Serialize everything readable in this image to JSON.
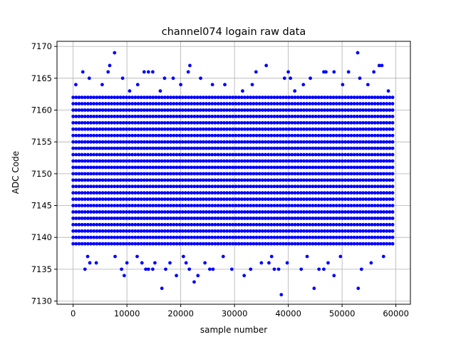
{
  "chart_data": {
    "type": "scatter",
    "title": "channel074 logain raw data",
    "xlabel": "sample number",
    "ylabel": "ADC Code",
    "xlim": [
      -3000,
      62700
    ],
    "ylim": [
      7129.5,
      7170.8
    ],
    "xticks": [
      0,
      10000,
      20000,
      30000,
      40000,
      50000,
      60000
    ],
    "yticks": [
      7130,
      7135,
      7140,
      7145,
      7150,
      7155,
      7160,
      7165,
      7170
    ],
    "grid": true,
    "legend": "none",
    "color": "#0000ff",
    "x_range": [
      0,
      59500
    ],
    "series": [
      {
        "dense_bands": [
          {
            "y": 7139,
            "x_span": [
              0,
              59500
            ]
          },
          {
            "y": 7140,
            "x_span": [
              0,
              59500
            ]
          },
          {
            "y": 7141,
            "x_span": [
              0,
              59500
            ]
          },
          {
            "y": 7142,
            "x_span": [
              0,
              59500
            ]
          },
          {
            "y": 7143,
            "x_span": [
              0,
              59500
            ]
          },
          {
            "y": 7144,
            "x_span": [
              0,
              59500
            ]
          },
          {
            "y": 7145,
            "x_span": [
              0,
              59500
            ]
          },
          {
            "y": 7146,
            "x_span": [
              0,
              59500
            ]
          },
          {
            "y": 7147,
            "x_span": [
              0,
              59500
            ]
          },
          {
            "y": 7148,
            "x_span": [
              0,
              59500
            ]
          },
          {
            "y": 7149,
            "x_span": [
              0,
              59500
            ]
          },
          {
            "y": 7150,
            "x_span": [
              0,
              59500
            ]
          },
          {
            "y": 7151,
            "x_span": [
              0,
              59500
            ]
          },
          {
            "y": 7152,
            "x_span": [
              0,
              59500
            ]
          },
          {
            "y": 7153,
            "x_span": [
              0,
              59500
            ]
          },
          {
            "y": 7154,
            "x_span": [
              0,
              59500
            ]
          },
          {
            "y": 7155,
            "x_span": [
              0,
              59500
            ]
          },
          {
            "y": 7156,
            "x_span": [
              0,
              59500
            ]
          },
          {
            "y": 7157,
            "x_span": [
              0,
              59500
            ]
          },
          {
            "y": 7158,
            "x_span": [
              0,
              59500
            ]
          },
          {
            "y": 7159,
            "x_span": [
              0,
              59500
            ]
          },
          {
            "y": 7160,
            "x_span": [
              0,
              59500
            ]
          },
          {
            "y": 7161,
            "x_span": [
              0,
              59500
            ]
          },
          {
            "y": 7162,
            "x_span": [
              0,
              59500
            ]
          }
        ],
        "sparse_points": [
          [
            2200,
            7135
          ],
          [
            3100,
            7136
          ],
          [
            4300,
            7136
          ],
          [
            9000,
            7135
          ],
          [
            9500,
            7134
          ],
          [
            10000,
            7136
          ],
          [
            12800,
            7136
          ],
          [
            13500,
            7135
          ],
          [
            14000,
            7135
          ],
          [
            14800,
            7135
          ],
          [
            15200,
            7136
          ],
          [
            16500,
            7132
          ],
          [
            17200,
            7135
          ],
          [
            18000,
            7136
          ],
          [
            19200,
            7134
          ],
          [
            21000,
            7136
          ],
          [
            21600,
            7135
          ],
          [
            22500,
            7133
          ],
          [
            23200,
            7134
          ],
          [
            24500,
            7136
          ],
          [
            25400,
            7135
          ],
          [
            26000,
            7135
          ],
          [
            29500,
            7135
          ],
          [
            31800,
            7134
          ],
          [
            33000,
            7135
          ],
          [
            35000,
            7136
          ],
          [
            36400,
            7136
          ],
          [
            37400,
            7135
          ],
          [
            38200,
            7135
          ],
          [
            38700,
            7131
          ],
          [
            39800,
            7136
          ],
          [
            42400,
            7135
          ],
          [
            44800,
            7132
          ],
          [
            45700,
            7135
          ],
          [
            46600,
            7135
          ],
          [
            47400,
            7136
          ],
          [
            48500,
            7134
          ],
          [
            53000,
            7132
          ],
          [
            53600,
            7135
          ],
          [
            55400,
            7136
          ],
          [
            1800,
            7166
          ],
          [
            3000,
            7165
          ],
          [
            6500,
            7166
          ],
          [
            6800,
            7167
          ],
          [
            7700,
            7169
          ],
          [
            9200,
            7165
          ],
          [
            13200,
            7166
          ],
          [
            14000,
            7166
          ],
          [
            14800,
            7166
          ],
          [
            17000,
            7165
          ],
          [
            18600,
            7165
          ],
          [
            21400,
            7166
          ],
          [
            21700,
            7167
          ],
          [
            23700,
            7165
          ],
          [
            34000,
            7166
          ],
          [
            35900,
            7167
          ],
          [
            39300,
            7165
          ],
          [
            40000,
            7166
          ],
          [
            40400,
            7165
          ],
          [
            42800,
            7164
          ],
          [
            44100,
            7165
          ],
          [
            46600,
            7166
          ],
          [
            47000,
            7166
          ],
          [
            48500,
            7166
          ],
          [
            51200,
            7166
          ],
          [
            52900,
            7169
          ],
          [
            53300,
            7165
          ],
          [
            55900,
            7166
          ],
          [
            56900,
            7167
          ],
          [
            57400,
            7167
          ],
          [
            500,
            7164
          ],
          [
            5400,
            7164
          ],
          [
            10500,
            7163
          ],
          [
            12000,
            7164
          ],
          [
            16200,
            7163
          ],
          [
            20000,
            7164
          ],
          [
            25900,
            7164
          ],
          [
            28200,
            7164
          ],
          [
            31500,
            7163
          ],
          [
            33300,
            7164
          ],
          [
            41200,
            7163
          ],
          [
            50100,
            7164
          ],
          [
            54800,
            7164
          ],
          [
            58600,
            7163
          ],
          [
            2700,
            7137
          ],
          [
            7800,
            7137
          ],
          [
            11900,
            7137
          ],
          [
            20500,
            7137
          ],
          [
            27900,
            7137
          ],
          [
            36900,
            7137
          ],
          [
            43500,
            7137
          ],
          [
            49700,
            7137
          ],
          [
            57700,
            7137
          ]
        ]
      }
    ]
  }
}
